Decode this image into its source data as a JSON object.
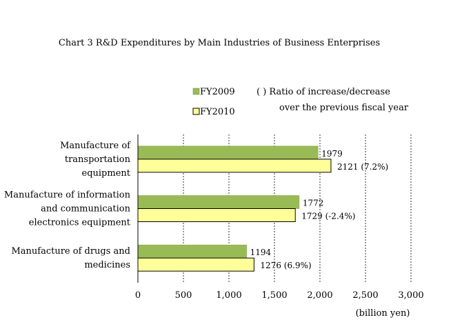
{
  "chart_data": {
    "type": "bar",
    "orientation": "horizontal",
    "title": "Chart 3 R&D Expenditures by Main Industries of Business Enterprises",
    "xlabel": "(billion yen)",
    "ylabel": "",
    "xlim": [
      0,
      3000
    ],
    "xticks": [
      0,
      500,
      1000,
      1500,
      2000,
      2500,
      3000
    ],
    "xtick_labels": [
      "0",
      "500",
      "1,000",
      "1,500",
      "2,000",
      "2,500",
      "3,000"
    ],
    "grid": "vertical dashed",
    "categories": [
      [
        "Manufacture of",
        "transportation",
        "equipment"
      ],
      [
        "Manufacture of  information",
        "and communication",
        "electronics equipment"
      ],
      [
        "Manufacture of  drugs and",
        "medicines"
      ]
    ],
    "series": [
      {
        "name": "FY2009",
        "color": "#99bb55",
        "values": [
          1979,
          1772,
          1194
        ],
        "labels": [
          "1979",
          "1772",
          "1194"
        ]
      },
      {
        "name": "FY2010",
        "color": "#ffff99",
        "values": [
          2121,
          1729,
          1276
        ],
        "labels": [
          "2121  (7.2%)",
          "1729  (-2.4%)",
          "1276  (6.9%)"
        ]
      }
    ],
    "legend": {
      "placement": "top-right",
      "entries": [
        "FY2009",
        "FY2010"
      ],
      "note_lines": [
        "( )  Ratio of  increase/decrease",
        "over the previous fiscal year"
      ]
    }
  }
}
